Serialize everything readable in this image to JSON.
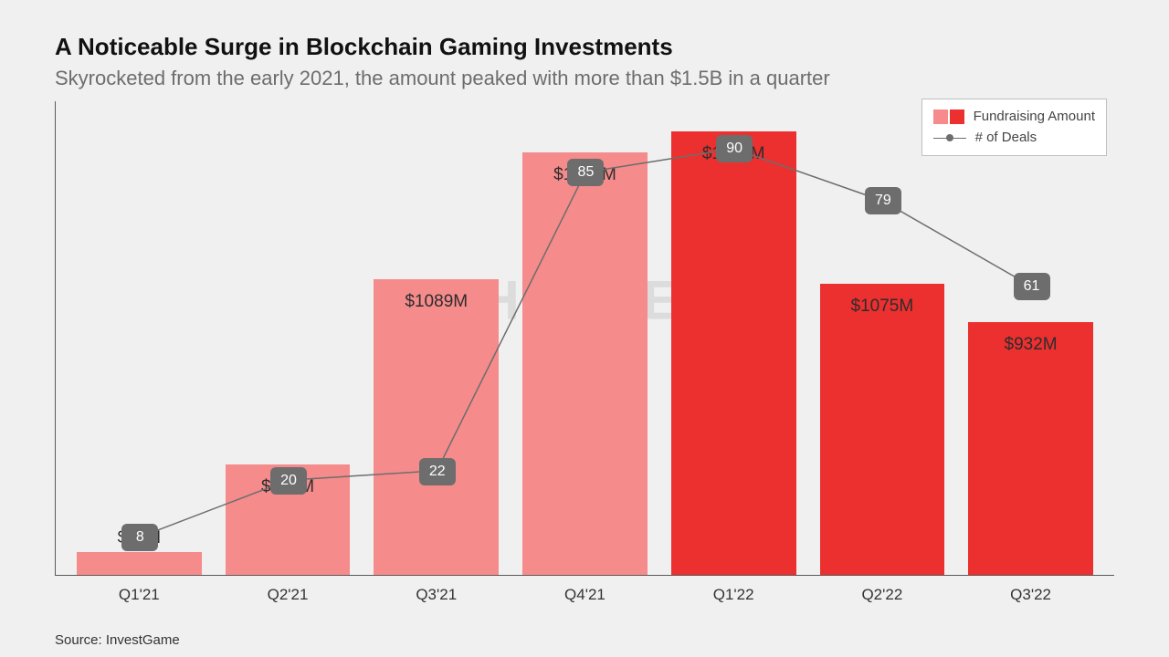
{
  "title": "A Noticeable Surge in Blockchain Gaming Investments",
  "subtitle": "Skyrocketed from the early 2021, the amount peaked with more than $1.5B in a quarter",
  "watermark": "#HASHED",
  "source": "Source: InvestGame",
  "legend": {
    "series1": "Fundraising Amount",
    "series2": "# of Deals"
  },
  "chart": {
    "type": "bar+line",
    "categories": [
      "Q1'21",
      "Q2'21",
      "Q3'21",
      "Q4'21",
      "Q1'22",
      "Q2'22",
      "Q3'22"
    ],
    "bar_values": [
      83,
      406,
      1089,
      1558,
      1634,
      1075,
      932
    ],
    "bar_labels": [
      "$83M",
      "$406M",
      "$1089M",
      "$1558M",
      "$1634M",
      "$1075M",
      "$932M"
    ],
    "bar_colors": [
      "#f58b8b",
      "#f58b8b",
      "#f58b8b",
      "#f58b8b",
      "#ec2f2f",
      "#ec2f2f",
      "#ec2f2f"
    ],
    "bar_ymax": 1750,
    "line_values": [
      8,
      20,
      22,
      85,
      90,
      79,
      61
    ],
    "line_ymax": 100,
    "line_color": "#6d6d6d",
    "legend_bar_colors": [
      "#f58b8b",
      "#ec2f2f"
    ],
    "background_color": "#f0f0f0",
    "axis_color": "#5a5a5a",
    "bar_label_fontsize": 19,
    "xlabel_fontsize": 17
  }
}
